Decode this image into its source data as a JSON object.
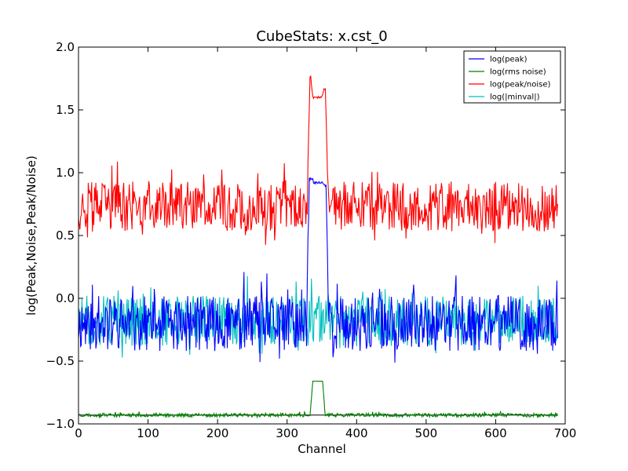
{
  "chart_data": {
    "type": "line",
    "title": "CubeStats: x.cst_0",
    "xlabel": "Channel",
    "ylabel": "log(Peak,Noise,Peak/Noise)",
    "xlim": [
      0,
      700
    ],
    "ylim": [
      -1.0,
      2.0
    ],
    "xticks": [
      0,
      100,
      200,
      300,
      400,
      500,
      600,
      700
    ],
    "xtick_labels": [
      "0",
      "100",
      "200",
      "300",
      "400",
      "500",
      "600",
      "700"
    ],
    "yticks": [
      -1.0,
      -0.5,
      0.0,
      0.5,
      1.0,
      1.5,
      2.0
    ],
    "ytick_labels": [
      "−1.0",
      "−0.5",
      "0.0",
      "0.5",
      "1.0",
      "1.5",
      "2.0"
    ],
    "grid": false,
    "legend_position": "top-right",
    "series": [
      {
        "name": "log(peak)",
        "color": "#0000ff",
        "baseline": -0.2,
        "noise_amp": 0.22,
        "seed": 11,
        "features": [
          [
            0,
            328,
            null
          ],
          [
            332,
            337,
            0.95
          ],
          [
            338,
            352,
            0.92
          ],
          [
            353,
            356,
            0.9
          ],
          [
            362,
            689,
            null
          ]
        ],
        "x_start": 0,
        "x_end": 689
      },
      {
        "name": "log(rms noise)",
        "color": "#008000",
        "baseline": -0.93,
        "noise_amp": 0.015,
        "seed": 23,
        "features": [
          [
            0,
            330,
            null
          ],
          [
            337,
            351,
            -0.66
          ],
          [
            360,
            689,
            null
          ]
        ],
        "x_start": 0,
        "x_end": 689
      },
      {
        "name": "log(peak/noise)",
        "color": "#ff0000",
        "baseline": 0.73,
        "noise_amp": 0.2,
        "seed": 37,
        "features": [
          [
            0,
            328,
            null
          ],
          [
            333,
            334,
            1.76
          ],
          [
            337,
            350,
            1.6
          ],
          [
            353,
            355,
            1.67
          ],
          [
            362,
            689,
            null
          ]
        ],
        "x_start": 0,
        "x_end": 689
      },
      {
        "name": "log(|minval|)",
        "color": "#00bfbf",
        "baseline": -0.18,
        "noise_amp": 0.2,
        "seed": 51,
        "features": [],
        "x_start": 0,
        "x_end": 689
      }
    ],
    "reference_line": {
      "color": "#000000",
      "y": -0.93,
      "x_start": 0,
      "x_end": 689
    }
  }
}
